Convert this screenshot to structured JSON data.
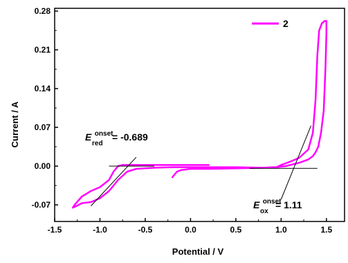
{
  "chart_data": {
    "type": "line",
    "xlabel": "Potential / V",
    "ylabel": "Current / A",
    "xlim": [
      -1.5,
      1.7
    ],
    "ylim": [
      -0.1,
      0.285
    ],
    "xticks": [
      -1.5,
      -1.0,
      -0.5,
      0.0,
      0.5,
      1.0,
      1.5
    ],
    "xtick_labels": [
      "-1.5",
      "-1.0",
      "-0.5",
      "0.0",
      "0.5",
      "1.0",
      "1.5"
    ],
    "yticks": [
      -0.07,
      0.0,
      0.07,
      0.14,
      0.21,
      0.28
    ],
    "ytick_labels": [
      "-0.07",
      "0.00",
      "0.07",
      "0.14",
      "0.21",
      "0.28"
    ],
    "grid": false,
    "legend_position": "top-right",
    "series": [
      {
        "name": "2",
        "color": "#ff00ff",
        "x": [
          -0.2,
          -0.15,
          -0.1,
          0.0,
          0.2,
          0.5,
          0.8,
          0.95,
          1.0,
          1.05,
          1.1,
          1.2,
          1.3,
          1.35,
          1.38,
          1.4,
          1.42,
          1.45,
          1.48,
          1.5,
          1.5,
          1.49,
          1.47,
          1.44,
          1.41,
          1.38,
          1.35,
          1.3,
          1.2,
          1.1,
          1.05,
          1.0,
          0.95,
          0.9,
          0.8,
          0.5,
          0.2,
          0.0,
          -0.2,
          -0.4,
          -0.6,
          -0.7,
          -0.8,
          -0.9,
          -1.0,
          -1.1,
          -1.2,
          -1.27,
          -1.3,
          -1.28,
          -1.2,
          -1.1,
          -1.0,
          -0.9,
          -0.85,
          -0.8,
          -0.75,
          -0.7,
          -0.6,
          -0.4,
          -0.2,
          0.0,
          0.2
        ],
        "y": [
          -0.02,
          -0.01,
          -0.007,
          -0.005,
          -0.005,
          -0.004,
          -0.003,
          -0.002,
          0.002,
          0.005,
          0.008,
          0.015,
          0.03,
          0.06,
          0.12,
          0.2,
          0.245,
          0.258,
          0.262,
          0.262,
          0.24,
          0.18,
          0.1,
          0.06,
          0.035,
          0.025,
          0.018,
          0.012,
          0.006,
          0.002,
          0.0,
          -0.001,
          -0.002,
          -0.002,
          -0.003,
          -0.002,
          -0.002,
          -0.002,
          -0.002,
          -0.003,
          -0.005,
          -0.01,
          -0.025,
          -0.045,
          -0.058,
          -0.065,
          -0.067,
          -0.073,
          -0.075,
          -0.07,
          -0.055,
          -0.045,
          -0.038,
          -0.025,
          -0.01,
          0.0,
          0.002,
          0.002,
          0.002,
          0.002,
          0.002,
          0.002,
          0.002
        ]
      }
    ],
    "tangent_lines": [
      {
        "x": [
          -1.1,
          -0.6
        ],
        "y": [
          -0.072,
          0.016
        ]
      },
      {
        "x": [
          -0.9,
          -0.4
        ],
        "y": [
          0.0,
          0.0
        ]
      },
      {
        "x": [
          0.65,
          1.4
        ],
        "y": [
          -0.004,
          -0.004
        ]
      },
      {
        "x": [
          1.0,
          1.33
        ],
        "y": [
          -0.06,
          0.073
        ]
      }
    ],
    "annotations": [
      {
        "id": "red",
        "symbol": "E",
        "superscript": "onset",
        "subscript": "red",
        "value": " = -0.689"
      },
      {
        "id": "ox",
        "symbol": "E",
        "superscript": "onset",
        "subscript": "ox",
        "value": " = 1.11"
      }
    ]
  }
}
